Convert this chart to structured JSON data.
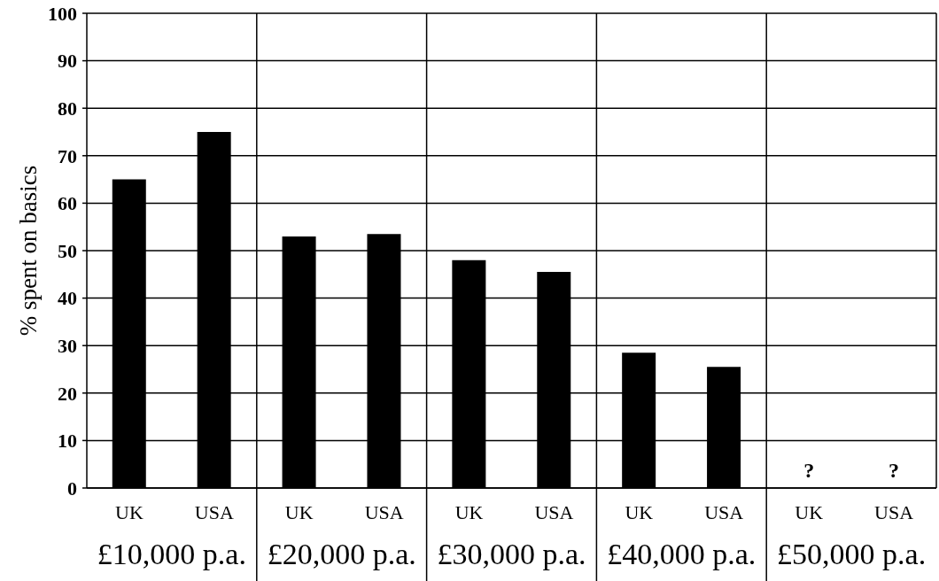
{
  "chart_data": {
    "type": "bar",
    "ylabel": "% spent on basics",
    "categories": [
      "UK",
      "USA",
      "UK",
      "USA",
      "UK",
      "USA",
      "UK",
      "USA",
      "UK",
      "USA"
    ],
    "values": [
      65,
      75,
      53,
      53.5,
      48,
      45.5,
      28.5,
      25.5,
      null,
      null
    ],
    "value_labels": [
      null,
      null,
      null,
      null,
      null,
      null,
      null,
      null,
      "?",
      "?"
    ],
    "color": "#000000",
    "annotations": [
      "£10,000 p.a.",
      "£20,000 p.a.",
      "£30,000 p.a.",
      "£40,000 p.a.",
      "£50,000 p.a."
    ],
    "ylim": [
      0,
      100
    ],
    "yticks": [
      0,
      10,
      20,
      30,
      40,
      50,
      60,
      70,
      80,
      90,
      100
    ],
    "grid": "y"
  }
}
